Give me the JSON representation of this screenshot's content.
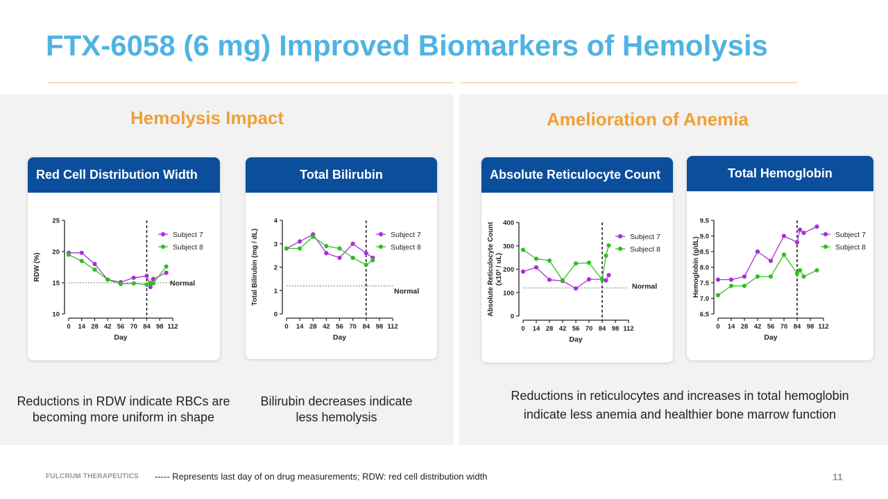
{
  "slide": {
    "title": "FTX-6058 (6 mg) Improved Biomarkers of Hemolysis",
    "left_section": "Hemolysis Impact",
    "right_section": "Amelioration of Anemia",
    "caption_rdw": "Reductions in RDW indicate RBCs are becoming more uniform in shape",
    "caption_bili": "Bilirubin decreases indicate less hemolysis",
    "caption_anemia": "Reductions in reticulocytes and increases in total hemoglobin indicate less anemia and healthier bone marrow function",
    "footer_brand": "FULCRUM THERAPEUTICS",
    "footnote": "----- Represents last day of on drug measurements; RDW: red cell distribution width",
    "page_number": "11"
  },
  "colors": {
    "subject7": "#a72fd8",
    "subject8": "#2fc01f",
    "header": "#0b4f9c"
  },
  "chart_data": [
    {
      "id": "rdw",
      "type": "line",
      "card_title": "Red Cell Distribution Width",
      "xlabel": "Day",
      "ylabel": "RDW (%)",
      "xlim": [
        0,
        112
      ],
      "ylim": [
        10,
        25
      ],
      "xticks": [
        0,
        14,
        28,
        42,
        56,
        70,
        84,
        98,
        112
      ],
      "yticks": [
        10,
        15,
        20,
        25
      ],
      "normal_value": 15,
      "normal_label": "Normal",
      "last_dose_day": 84,
      "series": [
        {
          "name": "Subject 7",
          "color": "#a72fd8",
          "x": [
            0,
            14,
            28,
            42,
            56,
            70,
            84,
            88,
            91,
            105
          ],
          "y": [
            19.8,
            19.8,
            18,
            15.5,
            15.1,
            15.8,
            16.1,
            14.3,
            15.6,
            16.6
          ]
        },
        {
          "name": "Subject 8",
          "color": "#2fc01f",
          "x": [
            0,
            14,
            28,
            42,
            56,
            70,
            84,
            88,
            91,
            105
          ],
          "y": [
            19.5,
            18.5,
            17.1,
            15.5,
            14.8,
            14.9,
            14.7,
            15,
            14.9,
            17.6
          ]
        }
      ]
    },
    {
      "id": "bili",
      "type": "line",
      "card_title": "Total Bilirubin",
      "xlabel": "Day",
      "ylabel": "Total Bilirubin (mg / dL)",
      "xlim": [
        0,
        112
      ],
      "ylim": [
        0,
        4
      ],
      "xticks": [
        0,
        14,
        28,
        42,
        56,
        70,
        84,
        98,
        112
      ],
      "yticks": [
        0,
        1,
        2,
        3,
        4
      ],
      "normal_value": 1.2,
      "normal_label": "Normal",
      "last_dose_day": 84,
      "series": [
        {
          "name": "Subject 7",
          "color": "#a72fd8",
          "x": [
            0,
            14,
            28,
            42,
            56,
            70,
            84,
            91
          ],
          "y": [
            2.8,
            3.1,
            3.4,
            2.6,
            2.4,
            3.0,
            2.6,
            2.4
          ]
        },
        {
          "name": "Subject 8",
          "color": "#2fc01f",
          "x": [
            0,
            14,
            28,
            42,
            56,
            70,
            84,
            91
          ],
          "y": [
            2.8,
            2.8,
            3.3,
            2.9,
            2.8,
            2.4,
            2.1,
            2.3
          ]
        }
      ]
    },
    {
      "id": "retic",
      "type": "line",
      "card_title": "Absolute Reticulocyte Count",
      "xlabel": "Day",
      "ylabel": "Absolute Reticulocyte Count",
      "ylabel2": "(x10³ / uL)",
      "xlim": [
        0,
        112
      ],
      "ylim": [
        0,
        400
      ],
      "xticks": [
        0,
        14,
        28,
        42,
        56,
        70,
        84,
        98,
        112
      ],
      "yticks": [
        0,
        100,
        200,
        300,
        400
      ],
      "normal_value": 120,
      "normal_label": "Normal",
      "last_dose_day": 84,
      "series": [
        {
          "name": "Subject 7",
          "color": "#a72fd8",
          "x": [
            0,
            14,
            28,
            42,
            56,
            70,
            84,
            88,
            91
          ],
          "y": [
            190,
            208,
            155,
            150,
            118,
            157,
            157,
            152,
            175
          ]
        },
        {
          "name": "Subject 8",
          "color": "#2fc01f",
          "x": [
            0,
            14,
            28,
            42,
            56,
            70,
            84,
            88,
            91
          ],
          "y": [
            283,
            245,
            237,
            153,
            225,
            228,
            155,
            258,
            302
          ]
        }
      ]
    },
    {
      "id": "hgb",
      "type": "line",
      "card_title": "Total Hemoglobin",
      "xlabel": "Day",
      "ylabel": "Hemoglobin (g/dL)",
      "xlim": [
        0,
        112
      ],
      "ylim": [
        6.5,
        9.5
      ],
      "xticks": [
        0,
        14,
        28,
        42,
        56,
        70,
        84,
        98,
        112
      ],
      "yticks": [
        6.5,
        7.0,
        7.5,
        8.0,
        8.5,
        9.0,
        9.5
      ],
      "ytick_labels": [
        "6.5",
        "7.0",
        "7.5",
        "8.0",
        "8.5",
        "9.0",
        "9.5"
      ],
      "last_dose_day": 84,
      "series": [
        {
          "name": "Subject 7",
          "color": "#a72fd8",
          "x": [
            0,
            14,
            28,
            42,
            56,
            70,
            84,
            87,
            91,
            105
          ],
          "y": [
            7.6,
            7.6,
            7.7,
            8.5,
            8.2,
            9.0,
            8.8,
            9.2,
            9.1,
            9.3
          ]
        },
        {
          "name": "Subject 8",
          "color": "#2fc01f",
          "x": [
            0,
            14,
            28,
            42,
            56,
            70,
            84,
            87,
            91,
            105
          ],
          "y": [
            7.1,
            7.4,
            7.4,
            7.7,
            7.7,
            8.4,
            7.8,
            7.9,
            7.7,
            7.9
          ]
        }
      ]
    }
  ]
}
